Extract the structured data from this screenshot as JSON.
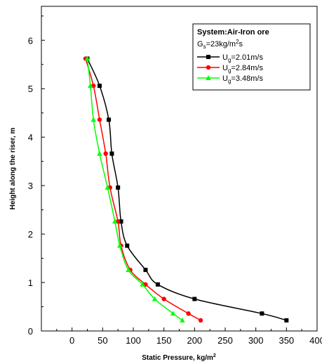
{
  "chart_data": {
    "type": "line",
    "xlabel": "Static Pressure, kg/m",
    "xlabel_sup": "2",
    "ylabel": "Height along the riser, m",
    "xlim": [
      -50,
      400
    ],
    "ylim": [
      0,
      6.7
    ],
    "xticks": [
      "0",
      "50",
      "100",
      "150",
      "200",
      "250",
      "300",
      "350",
      "400"
    ],
    "yticks": [
      "0",
      "1",
      "2",
      "3",
      "4",
      "5",
      "6"
    ],
    "xtick_values": [
      0,
      50,
      100,
      150,
      200,
      250,
      300,
      350,
      400
    ],
    "ytick_values": [
      0,
      1,
      2,
      3,
      4,
      5,
      6
    ],
    "grid": false,
    "legend": {
      "placement": "top-right",
      "title": "System:Air-Iron ore",
      "subtitle": {
        "pre": "G",
        "sub": "s",
        "mid": "=23kg/m",
        "sup": "2",
        "post": "s"
      }
    },
    "series": [
      {
        "name": "Ug=2.01m/s",
        "label": {
          "pre": "U",
          "sub": "g",
          "post": "=2.01m/s"
        },
        "color": "#000000",
        "marker": "square",
        "x": [
          350,
          310,
          200,
          140,
          120,
          90,
          80,
          75,
          65,
          60,
          45,
          25
        ],
        "y": [
          0.22,
          0.36,
          0.66,
          0.96,
          1.26,
          1.76,
          2.26,
          2.96,
          3.66,
          4.36,
          5.06,
          5.62
        ]
      },
      {
        "name": "Ug=2.84m/s",
        "label": {
          "pre": "U",
          "sub": "g",
          "post": "=2.84m/s"
        },
        "color": "#ff0000",
        "marker": "circle",
        "x": [
          210,
          190,
          150,
          120,
          95,
          80,
          75,
          62,
          55,
          45,
          35,
          22
        ],
        "y": [
          0.22,
          0.36,
          0.66,
          0.96,
          1.26,
          1.76,
          2.26,
          2.96,
          3.66,
          4.36,
          5.06,
          5.62
        ]
      },
      {
        "name": "Ug=3.48m/s",
        "label": {
          "pre": "U",
          "sub": "g",
          "post": "=3.48m/s"
        },
        "color": "#00ff00",
        "marker": "triangle",
        "x": [
          180,
          165,
          135,
          115,
          92,
          78,
          70,
          58,
          45,
          35,
          30,
          25
        ],
        "y": [
          0.22,
          0.36,
          0.66,
          0.96,
          1.26,
          1.76,
          2.26,
          2.96,
          3.66,
          4.36,
          5.06,
          5.62
        ]
      }
    ]
  }
}
